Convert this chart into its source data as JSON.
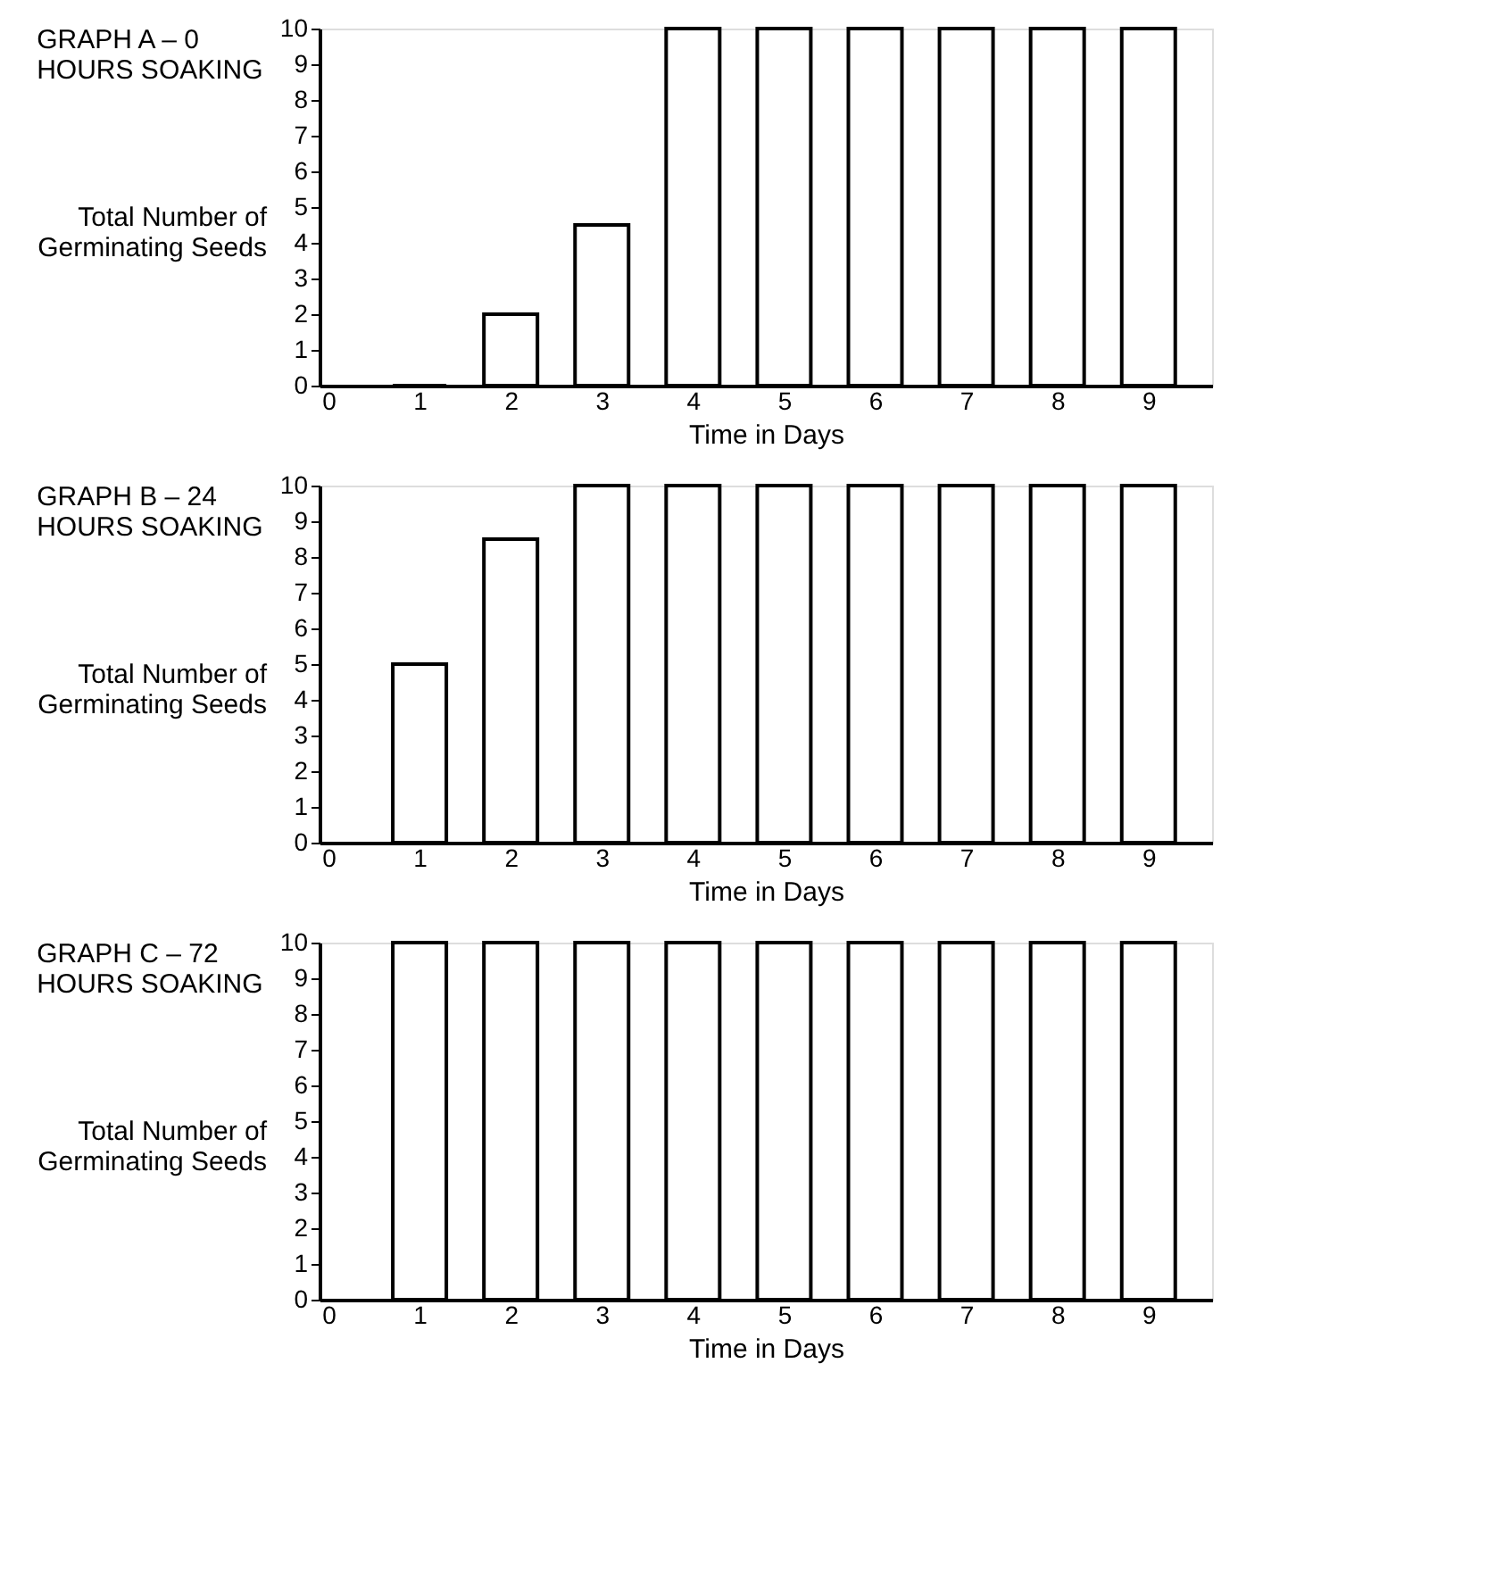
{
  "chart_data": [
    {
      "type": "bar",
      "title": "GRAPH A – 0\nHOURS SOAKING",
      "ylabel": "Total Number of\nGerminating Seeds",
      "xlabel": "Time in Days",
      "x": [
        1,
        2,
        3,
        4,
        5,
        6,
        7,
        8,
        9
      ],
      "series": [
        {
          "color": "#ffffff",
          "values": [
            0,
            2,
            4.5,
            10,
            10,
            10,
            10,
            10,
            10
          ]
        }
      ],
      "xlim": [
        0,
        9.6
      ],
      "xticks": [
        0,
        1,
        2,
        3,
        4,
        5,
        6,
        7,
        8,
        9
      ],
      "ylim": [
        0,
        10
      ],
      "yticks": [
        0,
        1,
        2,
        3,
        4,
        5,
        6,
        7,
        8,
        9,
        10
      ],
      "grid": false
    },
    {
      "type": "bar",
      "title": "GRAPH B – 24\nHOURS SOAKING",
      "ylabel": "Total Number of\nGerminating Seeds",
      "xlabel": "Time in Days",
      "x": [
        1,
        2,
        3,
        4,
        5,
        6,
        7,
        8,
        9
      ],
      "series": [
        {
          "color": "#ffffff",
          "values": [
            5,
            8.5,
            10,
            10,
            10,
            10,
            10,
            10,
            10
          ]
        }
      ],
      "xlim": [
        0,
        9.6
      ],
      "xticks": [
        0,
        1,
        2,
        3,
        4,
        5,
        6,
        7,
        8,
        9
      ],
      "ylim": [
        0,
        10
      ],
      "yticks": [
        0,
        1,
        2,
        3,
        4,
        5,
        6,
        7,
        8,
        9,
        10
      ],
      "grid": false
    },
    {
      "type": "bar",
      "title": "GRAPH C – 72\nHOURS SOAKING",
      "ylabel": "Total Number of\nGerminating Seeds",
      "xlabel": "Time in Days",
      "x": [
        1,
        2,
        3,
        4,
        5,
        6,
        7,
        8,
        9
      ],
      "series": [
        {
          "color": "#ffffff",
          "values": [
            10,
            10,
            10,
            10,
            10,
            10,
            10,
            10,
            10
          ]
        }
      ],
      "xlim": [
        0,
        9.6
      ],
      "xticks": [
        0,
        1,
        2,
        3,
        4,
        5,
        6,
        7,
        8,
        9
      ],
      "ylim": [
        0,
        10
      ],
      "yticks": [
        0,
        1,
        2,
        3,
        4,
        5,
        6,
        7,
        8,
        9,
        10
      ],
      "grid": false
    }
  ]
}
